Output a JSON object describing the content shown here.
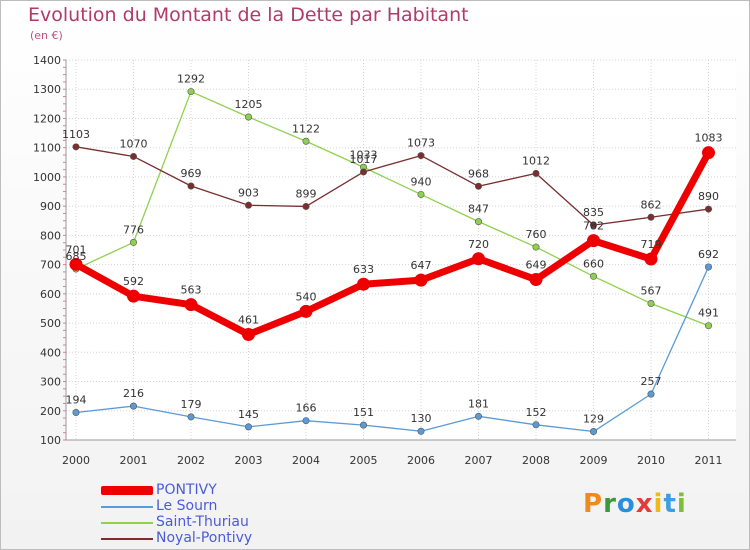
{
  "header": {
    "title": "Evolution du Montant de la Dette par Habitant",
    "subtitle": "(en €)"
  },
  "brand": {
    "letters": [
      "P",
      "r",
      "o",
      "x",
      "i",
      "t",
      "i"
    ]
  },
  "chart_data": {
    "type": "line",
    "title": "Evolution du Montant de la Dette par Habitant",
    "subtitle": "(en €)",
    "categories": [
      "2000",
      "2001",
      "2002",
      "2003",
      "2004",
      "2005",
      "2006",
      "2007",
      "2008",
      "2009",
      "2010",
      "2011"
    ],
    "ylim": [
      100,
      1400
    ],
    "yticks": [
      100,
      200,
      300,
      400,
      500,
      600,
      700,
      800,
      900,
      1000,
      1100,
      1200,
      1300,
      1400
    ],
    "grid": true,
    "legend_position": "bottom-left",
    "series": [
      {
        "name": "PONTIVY",
        "color": "#ee0000",
        "values": [
          701,
          592,
          563,
          461,
          540,
          633,
          647,
          720,
          649,
          782,
          719,
          1083
        ]
      },
      {
        "name": "Le Sourn",
        "color": "#5b9bd5",
        "values": [
          194,
          216,
          179,
          145,
          166,
          151,
          130,
          181,
          152,
          129,
          257,
          692
        ]
      },
      {
        "name": "Saint-Thuriau",
        "color": "#8fd14f",
        "values": [
          685,
          776,
          1292,
          1205,
          1122,
          1033,
          940,
          847,
          760,
          660,
          567,
          491
        ]
      },
      {
        "name": "Noyal-Pontivy",
        "color": "#7a2e2e",
        "values": [
          1103,
          1070,
          969,
          903,
          899,
          1017,
          1073,
          968,
          1012,
          835,
          862,
          890
        ]
      }
    ]
  }
}
